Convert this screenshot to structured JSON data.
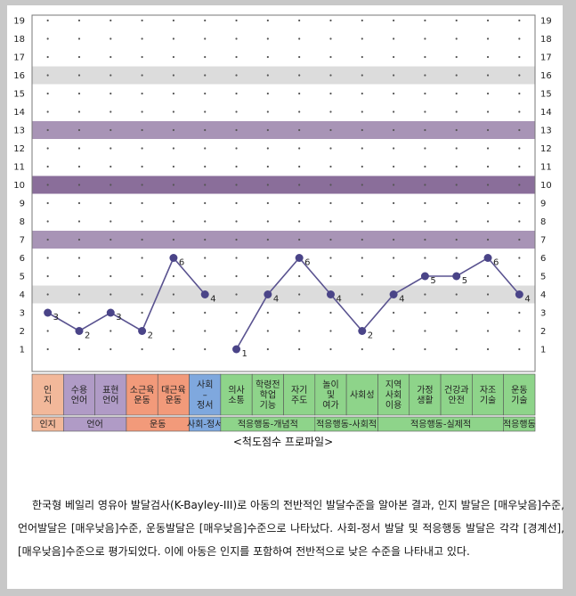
{
  "chart_data": {
    "type": "line",
    "ylim": [
      0,
      19
    ],
    "yticks": [
      1,
      2,
      3,
      4,
      5,
      6,
      7,
      8,
      9,
      10,
      11,
      12,
      13,
      14,
      15,
      16,
      17,
      18,
      19
    ],
    "grid": "dotted",
    "bands": [
      {
        "y": 16,
        "color": "#dcdcdc"
      },
      {
        "y": 13,
        "color": "#a894b6"
      },
      {
        "y": 10,
        "color": "#8a6e9a"
      },
      {
        "y": 7,
        "color": "#a894b6"
      },
      {
        "y": 4,
        "color": "#dcdcdc"
      }
    ],
    "categories": [
      {
        "label": [
          "인",
          "지"
        ],
        "color": "#f2b89a"
      },
      {
        "label": [
          "수용",
          "언어"
        ],
        "color": "#b09bc6"
      },
      {
        "label": [
          "표현",
          "언어"
        ],
        "color": "#b09bc6"
      },
      {
        "label": [
          "소근육",
          "운동"
        ],
        "color": "#f29a7a"
      },
      {
        "label": [
          "대근육",
          "운동"
        ],
        "color": "#f29a7a"
      },
      {
        "label": [
          "사회",
          "–",
          "정서"
        ],
        "color": "#7fa8de"
      },
      {
        "label": [
          "의사",
          "소통"
        ],
        "color": "#8ed48a"
      },
      {
        "label": [
          "학령전",
          "학업",
          "기능"
        ],
        "color": "#8ed48a"
      },
      {
        "label": [
          "자기",
          "주도"
        ],
        "color": "#8ed48a"
      },
      {
        "label": [
          "놀이",
          "및",
          "여가"
        ],
        "color": "#8ed48a"
      },
      {
        "label": [
          "사회성"
        ],
        "color": "#8ed48a"
      },
      {
        "label": [
          "지역",
          "사회",
          "이용"
        ],
        "color": "#8ed48a"
      },
      {
        "label": [
          "가정",
          "생활"
        ],
        "color": "#8ed48a"
      },
      {
        "label": [
          "건강과",
          "안전"
        ],
        "color": "#8ed48a"
      },
      {
        "label": [
          "자조",
          "기술"
        ],
        "color": "#8ed48a"
      },
      {
        "label": [
          "운동",
          "기술"
        ],
        "color": "#8ed48a"
      }
    ],
    "segments": [
      {
        "points": [
          [
            0,
            3
          ],
          [
            1,
            2
          ],
          [
            2,
            3
          ],
          [
            3,
            2
          ],
          [
            4,
            6
          ],
          [
            5,
            4
          ]
        ]
      },
      {
        "points": [
          [
            6,
            1
          ],
          [
            7,
            4
          ],
          [
            8,
            6
          ],
          [
            9,
            4
          ],
          [
            10,
            2
          ],
          [
            11,
            4
          ],
          [
            12,
            5
          ],
          [
            13,
            5
          ],
          [
            14,
            6
          ],
          [
            15,
            4
          ]
        ]
      }
    ],
    "groups": [
      {
        "label": "인지",
        "from": 0,
        "to": 0,
        "color": "#f2b89a"
      },
      {
        "label": "언어",
        "from": 1,
        "to": 2,
        "color": "#b09bc6"
      },
      {
        "label": "운동",
        "from": 3,
        "to": 4,
        "color": "#f29a7a"
      },
      {
        "label": "사회-정서",
        "from": 5,
        "to": 5,
        "color": "#7fa8de"
      },
      {
        "label": "적응행동-개념적",
        "from": 6,
        "to": 8,
        "color": "#8ed48a"
      },
      {
        "label": "적응행동-사회적",
        "from": 9,
        "to": 10,
        "color": "#8ed48a"
      },
      {
        "label": "적응행동-실제적",
        "from": 11,
        "to": 14,
        "color": "#8ed48a"
      },
      {
        "label": "적응행동",
        "from": 15,
        "to": 15,
        "color": "#8ed48a"
      }
    ],
    "caption": "<척도점수 프로파일>",
    "line_color": "#5a5390",
    "marker_color": "#4a4488"
  },
  "description": "한국형 베일리 영유아 발달검사(K-Bayley-III)로 아동의 전반적인 발달수준을 알아본 결과, 인지 발달은 [매우낮음]수준, 언어발달은 [매우낮음]수준, 운동발달은 [매우낮음]수준으로 나타났다. 사회-정서 발달 및 적응행동 발달은 각각 [경계선], [매우낮음]수준으로 평가되었다. 이에 아동은 인지를 포함하여 전반적으로 낮은 수준을 나타내고 있다."
}
